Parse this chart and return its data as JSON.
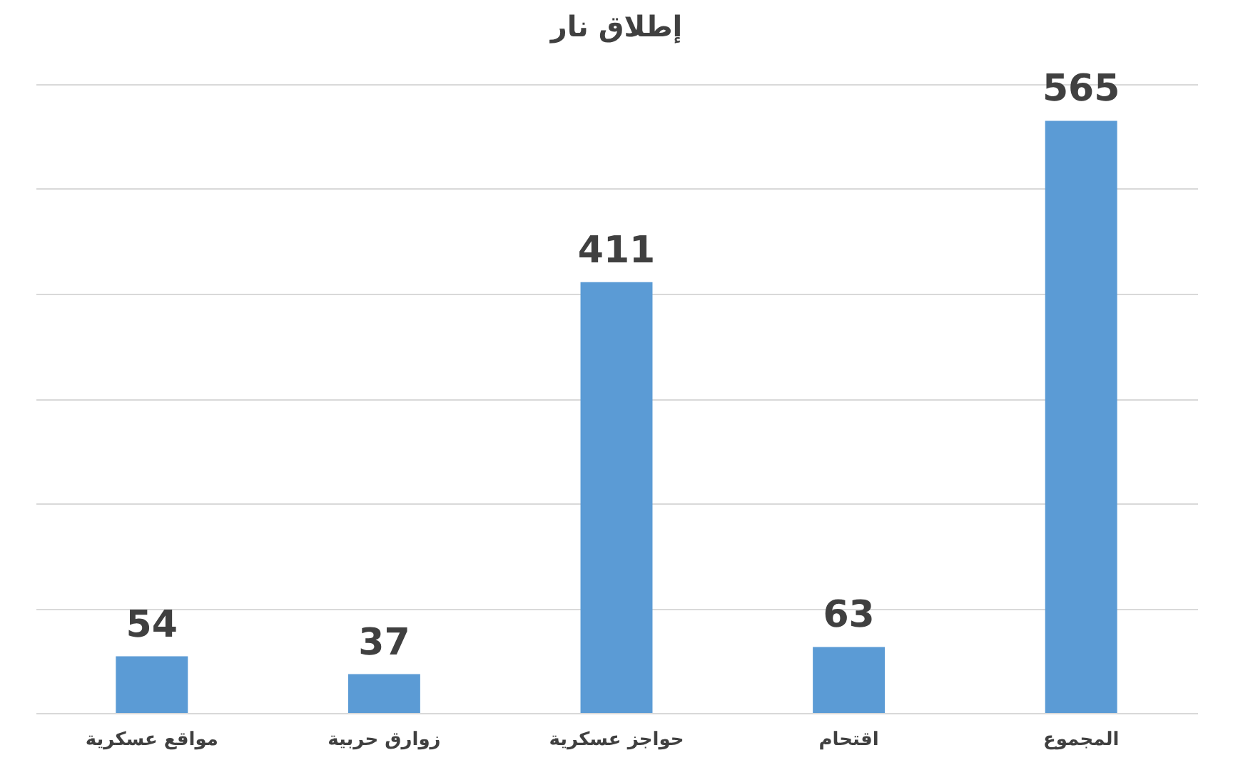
{
  "chart_data": {
    "type": "bar",
    "title": "إطلاق نار",
    "categories": [
      "مواقع عسكرية",
      "زوارق حربية",
      "حواجز عسكرية",
      "اقتحام",
      "المجموع"
    ],
    "values": [
      54,
      37,
      411,
      63,
      565
    ],
    "color": "#5b9bd5",
    "ylim": [
      0,
      600
    ],
    "yticks": [
      {
        "value": 0,
        "label": null
      },
      {
        "value": 100,
        "label": null
      },
      {
        "value": 200,
        "label": null
      },
      {
        "value": 300,
        "label": null
      },
      {
        "value": 400,
        "label": null
      },
      {
        "value": 500,
        "label": null
      },
      {
        "value": 600,
        "label": null
      }
    ],
    "grid": "y",
    "tick_labels": "x",
    "data_labels": true
  }
}
